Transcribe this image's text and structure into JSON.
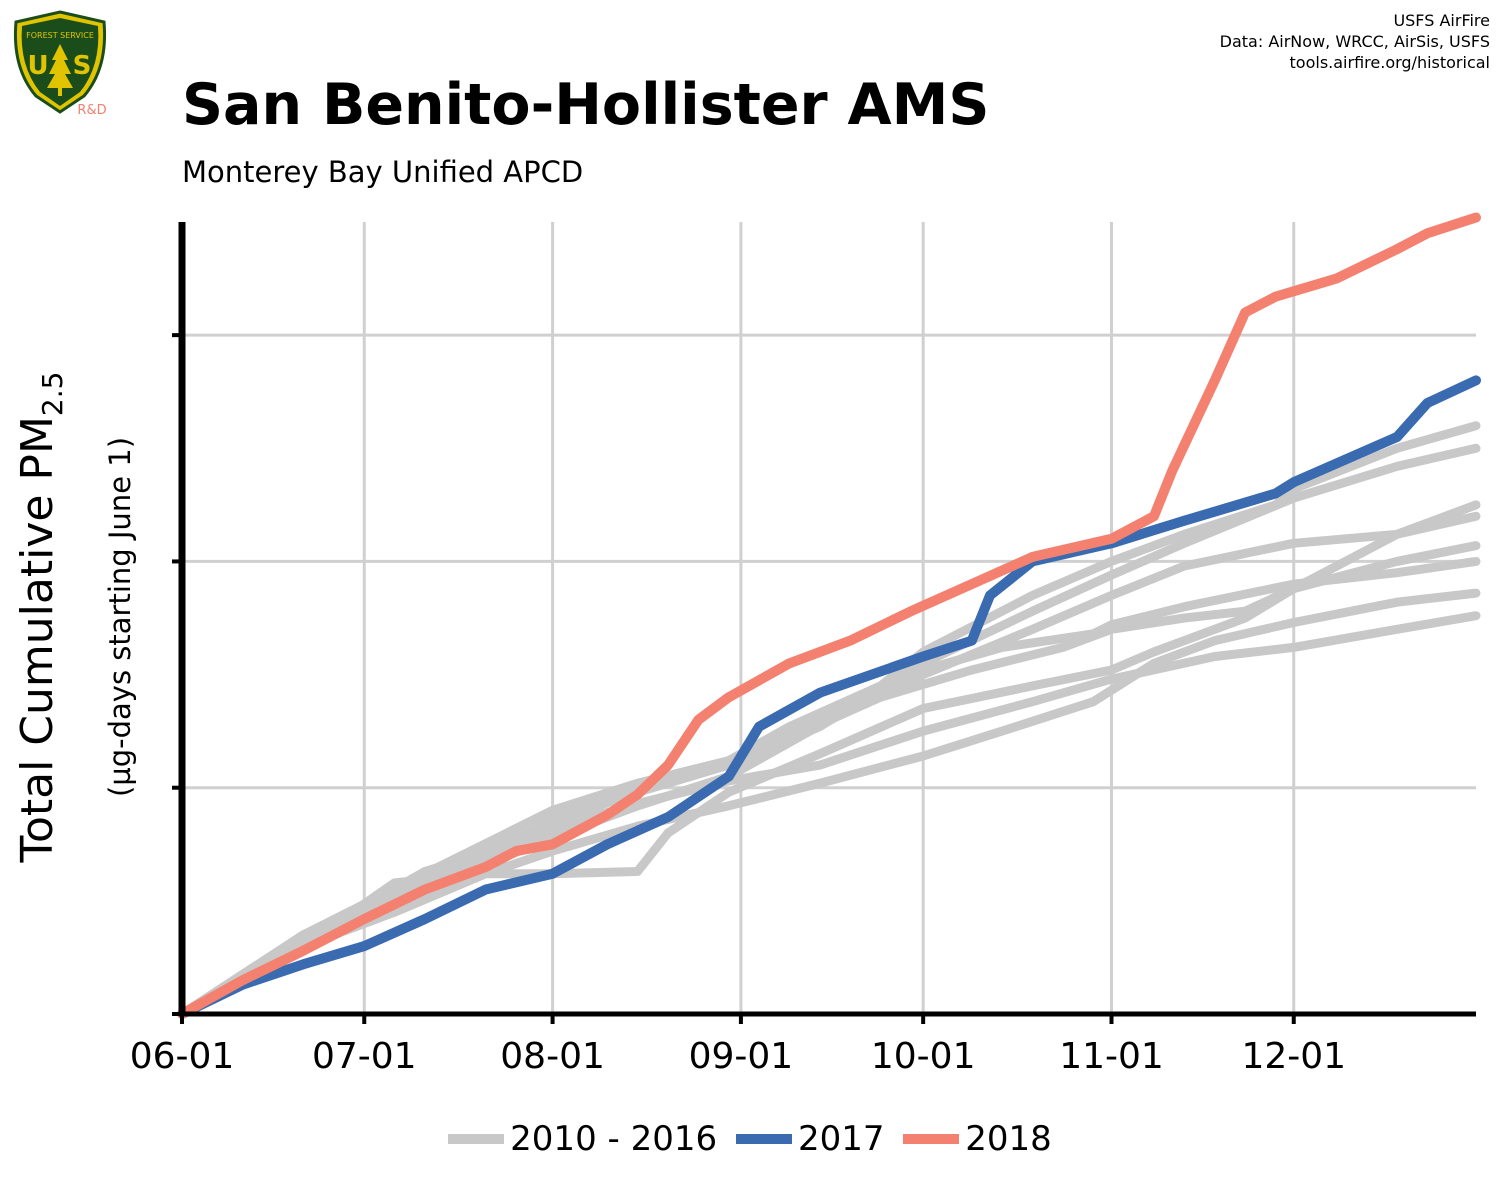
{
  "header": {
    "title": "San Benito-Hollister AMS",
    "subtitle": "Monterey Bay Unified APCD",
    "credits": [
      "USFS AirFire",
      "Data: AirNow, WRCC, AirSis, USFS",
      "tools.airfire.org/historical"
    ]
  },
  "logo": {
    "icon": "usfs-shield-icon",
    "label": "R&D"
  },
  "colors": {
    "grid": "#d0d0d0",
    "history": "#c8c8c8",
    "y2017": "#3a6bb0",
    "y2018": "#f4816f",
    "axis": "#000000"
  },
  "chart_data": {
    "type": "line",
    "title": "San Benito-Hollister AMS",
    "subtitle": "Monterey Bay Unified APCD",
    "ylabel": "Total Cumulative PM",
    "ylabel_sub": "2.5",
    "ylabel_units": "(µg-days starting June 1)",
    "x_ticks": [
      {
        "day": 0,
        "label": "06-01"
      },
      {
        "day": 30,
        "label": "07-01"
      },
      {
        "day": 61,
        "label": "08-01"
      },
      {
        "day": 92,
        "label": "09-01"
      },
      {
        "day": 122,
        "label": "10-01"
      },
      {
        "day": 153,
        "label": "11-01"
      },
      {
        "day": 183,
        "label": "12-01"
      }
    ],
    "xlim": [
      0,
      213
    ],
    "ylim": [
      0,
      3.5
    ],
    "y_gridlines": [
      1,
      2,
      3
    ],
    "grid": true,
    "legend_position": "bottom",
    "legend": [
      {
        "label": "2010 - 2016",
        "color": "#c8c8c8"
      },
      {
        "label": "2017",
        "color": "#3a6bb0"
      },
      {
        "label": "2018",
        "color": "#f4816f"
      }
    ],
    "series": [
      {
        "group": "2010 - 2016",
        "color": "#c8c8c8",
        "points": [
          [
            0,
            0
          ],
          [
            20,
            0.3
          ],
          [
            34,
            0.52
          ],
          [
            50,
            0.7
          ],
          [
            61,
            0.86
          ],
          [
            75,
            0.98
          ],
          [
            90,
            1.1
          ],
          [
            105,
            1.27
          ],
          [
            122,
            1.55
          ],
          [
            140,
            1.78
          ],
          [
            153,
            1.94
          ],
          [
            165,
            2.08
          ],
          [
            183,
            2.28
          ],
          [
            200,
            2.42
          ],
          [
            213,
            2.5
          ]
        ]
      },
      {
        "group": "2010 - 2016",
        "color": "#c8c8c8",
        "points": [
          [
            0,
            0
          ],
          [
            25,
            0.4
          ],
          [
            40,
            0.63
          ],
          [
            61,
            0.8
          ],
          [
            75,
            0.92
          ],
          [
            90,
            1.05
          ],
          [
            100,
            1.22
          ],
          [
            115,
            1.4
          ],
          [
            130,
            1.52
          ],
          [
            145,
            1.62
          ],
          [
            153,
            1.7
          ],
          [
            165,
            1.75
          ],
          [
            175,
            1.78
          ],
          [
            183,
            1.88
          ],
          [
            200,
            2.0
          ],
          [
            213,
            2.07
          ]
        ]
      },
      {
        "group": "2010 - 2016",
        "color": "#c8c8c8",
        "points": [
          [
            0,
            0
          ],
          [
            20,
            0.28
          ],
          [
            40,
            0.55
          ],
          [
            55,
            0.75
          ],
          [
            61,
            0.82
          ],
          [
            75,
            0.93
          ],
          [
            90,
            1.03
          ],
          [
            105,
            1.1
          ],
          [
            122,
            1.25
          ],
          [
            140,
            1.38
          ],
          [
            153,
            1.48
          ],
          [
            170,
            1.58
          ],
          [
            183,
            1.62
          ],
          [
            200,
            1.7
          ],
          [
            213,
            1.76
          ]
        ]
      },
      {
        "group": "2010 - 2016",
        "color": "#c8c8c8",
        "points": [
          [
            0,
            0
          ],
          [
            20,
            0.3
          ],
          [
            35,
            0.45
          ],
          [
            50,
            0.62
          ],
          [
            61,
            0.72
          ],
          [
            75,
            0.83
          ],
          [
            90,
            0.92
          ],
          [
            105,
            1.02
          ],
          [
            122,
            1.14
          ],
          [
            135,
            1.25
          ],
          [
            150,
            1.38
          ],
          [
            160,
            1.55
          ],
          [
            170,
            1.65
          ],
          [
            183,
            1.73
          ],
          [
            200,
            1.82
          ],
          [
            213,
            1.86
          ]
        ]
      },
      {
        "group": "2010 - 2016",
        "color": "#c8c8c8",
        "points": [
          [
            0,
            0
          ],
          [
            20,
            0.3
          ],
          [
            35,
            0.58
          ],
          [
            50,
            0.62
          ],
          [
            61,
            0.62
          ],
          [
            75,
            0.63
          ],
          [
            80,
            0.8
          ],
          [
            90,
            0.98
          ],
          [
            105,
            1.15
          ],
          [
            122,
            1.35
          ],
          [
            140,
            1.45
          ],
          [
            153,
            1.52
          ],
          [
            160,
            1.6
          ],
          [
            175,
            1.75
          ],
          [
            183,
            1.88
          ],
          [
            200,
            2.12
          ],
          [
            213,
            2.25
          ]
        ]
      },
      {
        "group": "2010 - 2016",
        "color": "#c8c8c8",
        "points": [
          [
            0,
            0
          ],
          [
            20,
            0.35
          ],
          [
            40,
            0.6
          ],
          [
            61,
            0.85
          ],
          [
            75,
            0.98
          ],
          [
            90,
            1.12
          ],
          [
            100,
            1.23
          ],
          [
            115,
            1.42
          ],
          [
            122,
            1.52
          ],
          [
            135,
            1.62
          ],
          [
            150,
            1.68
          ],
          [
            153,
            1.72
          ],
          [
            165,
            1.8
          ],
          [
            183,
            1.9
          ],
          [
            200,
            1.95
          ],
          [
            213,
            2.0
          ]
        ]
      },
      {
        "group": "2010 - 2016",
        "color": "#c8c8c8",
        "points": [
          [
            0,
            0
          ],
          [
            20,
            0.35
          ],
          [
            40,
            0.62
          ],
          [
            61,
            0.9
          ],
          [
            75,
            1.02
          ],
          [
            90,
            1.12
          ],
          [
            100,
            1.27
          ],
          [
            115,
            1.45
          ],
          [
            122,
            1.6
          ],
          [
            140,
            1.85
          ],
          [
            153,
            2.0
          ],
          [
            165,
            2.12
          ],
          [
            180,
            2.25
          ],
          [
            183,
            2.32
          ],
          [
            200,
            2.5
          ],
          [
            213,
            2.6
          ]
        ]
      },
      {
        "group": "2010 - 2016",
        "color": "#c8c8c8",
        "points": [
          [
            0,
            0
          ],
          [
            20,
            0.35
          ],
          [
            40,
            0.55
          ],
          [
            61,
            0.78
          ],
          [
            75,
            0.92
          ],
          [
            90,
            1.05
          ],
          [
            100,
            1.2
          ],
          [
            110,
            1.35
          ],
          [
            122,
            1.5
          ],
          [
            140,
            1.7
          ],
          [
            153,
            1.85
          ],
          [
            165,
            1.98
          ],
          [
            183,
            2.08
          ],
          [
            200,
            2.12
          ],
          [
            213,
            2.2
          ]
        ]
      },
      {
        "group": "2017",
        "color": "#3a6bb0",
        "points": [
          [
            0,
            0
          ],
          [
            10,
            0.13
          ],
          [
            20,
            0.22
          ],
          [
            30,
            0.3
          ],
          [
            40,
            0.42
          ],
          [
            50,
            0.55
          ],
          [
            61,
            0.62
          ],
          [
            70,
            0.75
          ],
          [
            80,
            0.87
          ],
          [
            90,
            1.05
          ],
          [
            95,
            1.27
          ],
          [
            105,
            1.42
          ],
          [
            122,
            1.58
          ],
          [
            130,
            1.65
          ],
          [
            133,
            1.85
          ],
          [
            140,
            2.0
          ],
          [
            153,
            2.08
          ],
          [
            165,
            2.18
          ],
          [
            180,
            2.3
          ],
          [
            183,
            2.35
          ],
          [
            200,
            2.55
          ],
          [
            205,
            2.7
          ],
          [
            213,
            2.8
          ]
        ]
      },
      {
        "group": "2018",
        "color": "#f4816f",
        "points": [
          [
            0,
            0
          ],
          [
            10,
            0.15
          ],
          [
            20,
            0.28
          ],
          [
            30,
            0.42
          ],
          [
            40,
            0.55
          ],
          [
            50,
            0.65
          ],
          [
            55,
            0.72
          ],
          [
            61,
            0.75
          ],
          [
            70,
            0.88
          ],
          [
            75,
            0.97
          ],
          [
            80,
            1.1
          ],
          [
            85,
            1.3
          ],
          [
            90,
            1.4
          ],
          [
            100,
            1.55
          ],
          [
            110,
            1.65
          ],
          [
            120,
            1.78
          ],
          [
            130,
            1.9
          ],
          [
            140,
            2.02
          ],
          [
            153,
            2.1
          ],
          [
            160,
            2.2
          ],
          [
            163,
            2.4
          ],
          [
            170,
            2.8
          ],
          [
            175,
            3.1
          ],
          [
            180,
            3.17
          ],
          [
            190,
            3.25
          ],
          [
            200,
            3.38
          ],
          [
            205,
            3.45
          ],
          [
            213,
            3.52
          ]
        ]
      }
    ]
  }
}
